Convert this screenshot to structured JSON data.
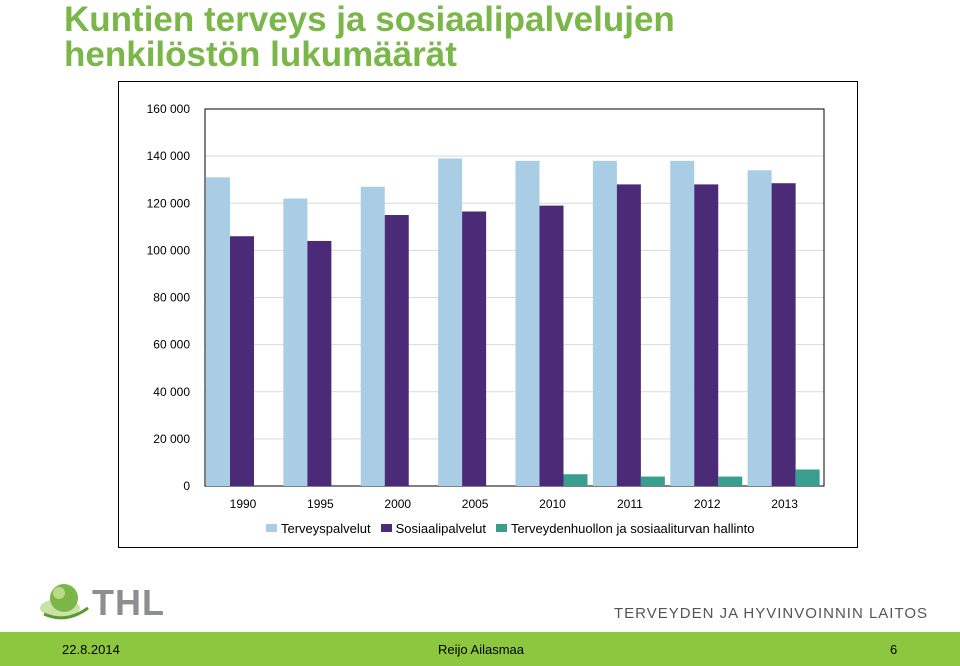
{
  "title": {
    "line1": "Kuntien terveys ja sosiaalipalvelujen",
    "line2": "henkilöstön lukumäärät"
  },
  "chart_data": {
    "type": "bar",
    "title": "Kuntien terveys ja sosiaalipalvelujen henkilöstön lukumäärät",
    "categories": [
      "1990",
      "1995",
      "2000",
      "2005",
      "2010",
      "2011",
      "2012",
      "2013"
    ],
    "series": [
      {
        "name": "Terveyspalvelut",
        "color": "#a9cde4",
        "values": [
          131000,
          122000,
          127000,
          139000,
          138000,
          138000,
          138000,
          134000
        ]
      },
      {
        "name": "Sosiaalipalvelut",
        "color": "#4b2a78",
        "values": [
          106000,
          104000,
          115000,
          116500,
          119000,
          128000,
          128000,
          128500
        ]
      },
      {
        "name": "Terveydenhuollon ja sosiaaliturvan hallinto",
        "color": "#3a9e8f",
        "values": [
          0,
          0,
          0,
          0,
          5000,
          4000,
          4000,
          7000
        ]
      }
    ],
    "y_ticks": [
      "0",
      "20 000",
      "40 000",
      "60 000",
      "80 000",
      "100 000",
      "120 000",
      "140 000",
      "160 000"
    ],
    "ylim": [
      0,
      160000
    ],
    "xlabel": "",
    "ylabel": "",
    "grid": true,
    "legend_position": "bottom"
  },
  "logo": {
    "text": "THL"
  },
  "org_name": "TERVEYDEN JA HYVINVOINNIN LAITOS",
  "footer": {
    "date": "22.8.2014",
    "author": "Reijo Ailasmaa",
    "page": "6"
  },
  "colors": {
    "title": "#7ab648",
    "footer_bg": "#8dc63f"
  }
}
